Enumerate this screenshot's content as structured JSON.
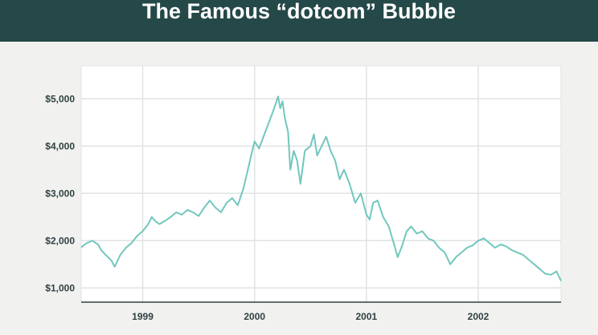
{
  "header": {
    "title": "The Famous “dotcom” Bubble"
  },
  "colors": {
    "header_bg": "#254848",
    "plot_bg": "#ffffff",
    "page_bg": "#f1f1ef",
    "line": "#72c7bd",
    "grid": "#dfe3e3",
    "axis": "#2f4242"
  },
  "chart_data": {
    "type": "line",
    "title": "The Famous “dotcom” Bubble",
    "xlabel": "",
    "ylabel": "",
    "x_ticks": [
      {
        "label": "1999",
        "value": 1999.0
      },
      {
        "label": "2000",
        "value": 2000.0
      },
      {
        "label": "2001",
        "value": 2001.0
      },
      {
        "label": "2002",
        "value": 2002.0
      }
    ],
    "y_ticks": [
      {
        "label": "$1,000",
        "value": 1000
      },
      {
        "label": "$2,000",
        "value": 2000
      },
      {
        "label": "$3,000",
        "value": 3000
      },
      {
        "label": "$4,000",
        "value": 4000
      },
      {
        "label": "$5,000",
        "value": 5000
      }
    ],
    "xlim": [
      1998.45,
      2002.74
    ],
    "ylim": [
      700,
      5700
    ],
    "grid": true,
    "legend": "none",
    "series": [
      {
        "x": [
          1998.45,
          1998.5,
          1998.55,
          1998.6,
          1998.63,
          1998.66,
          1998.69,
          1998.72,
          1998.75,
          1998.8,
          1998.85,
          1998.9,
          1998.95,
          1999.0,
          1999.05,
          1999.08,
          1999.12,
          1999.15,
          1999.2,
          1999.25,
          1999.3,
          1999.35,
          1999.4,
          1999.45,
          1999.5,
          1999.55,
          1999.6,
          1999.65,
          1999.7,
          1999.75,
          1999.8,
          1999.85,
          1999.9,
          1999.93,
          1999.96,
          2000.0,
          2000.04,
          2000.08,
          2000.12,
          2000.16,
          2000.19,
          2000.21,
          2000.23,
          2000.25,
          2000.27,
          2000.3,
          2000.32,
          2000.35,
          2000.38,
          2000.41,
          2000.45,
          2000.5,
          2000.53,
          2000.56,
          2000.6,
          2000.64,
          2000.68,
          2000.72,
          2000.76,
          2000.8,
          2000.85,
          2000.9,
          2000.95,
          2001.0,
          2001.03,
          2001.06,
          2001.1,
          2001.15,
          2001.2,
          2001.25,
          2001.28,
          2001.32,
          2001.36,
          2001.4,
          2001.45,
          2001.5,
          2001.55,
          2001.6,
          2001.65,
          2001.7,
          2001.75,
          2001.8,
          2001.85,
          2001.9,
          2001.95,
          2002.0,
          2002.05,
          2002.1,
          2002.15,
          2002.2,
          2002.25,
          2002.3,
          2002.35,
          2002.4,
          2002.45,
          2002.5,
          2002.55,
          2002.6,
          2002.65,
          2002.7,
          2002.74
        ],
        "y": [
          1860,
          1950,
          2000,
          1920,
          1800,
          1720,
          1650,
          1580,
          1450,
          1700,
          1850,
          1950,
          2100,
          2200,
          2350,
          2500,
          2400,
          2350,
          2420,
          2500,
          2600,
          2550,
          2650,
          2600,
          2520,
          2700,
          2850,
          2700,
          2600,
          2800,
          2900,
          2750,
          3100,
          3400,
          3700,
          4100,
          3950,
          4200,
          4450,
          4700,
          4900,
          5050,
          4800,
          4950,
          4600,
          4300,
          3500,
          3900,
          3700,
          3200,
          3900,
          4000,
          4250,
          3800,
          4000,
          4200,
          3900,
          3700,
          3300,
          3500,
          3200,
          2800,
          3000,
          2550,
          2450,
          2800,
          2850,
          2500,
          2300,
          1900,
          1650,
          1900,
          2200,
          2300,
          2150,
          2200,
          2050,
          2000,
          1850,
          1750,
          1500,
          1650,
          1750,
          1850,
          1900,
          2000,
          2050,
          1950,
          1850,
          1920,
          1880,
          1800,
          1750,
          1700,
          1600,
          1500,
          1400,
          1300,
          1280,
          1350,
          1150
        ]
      }
    ]
  }
}
